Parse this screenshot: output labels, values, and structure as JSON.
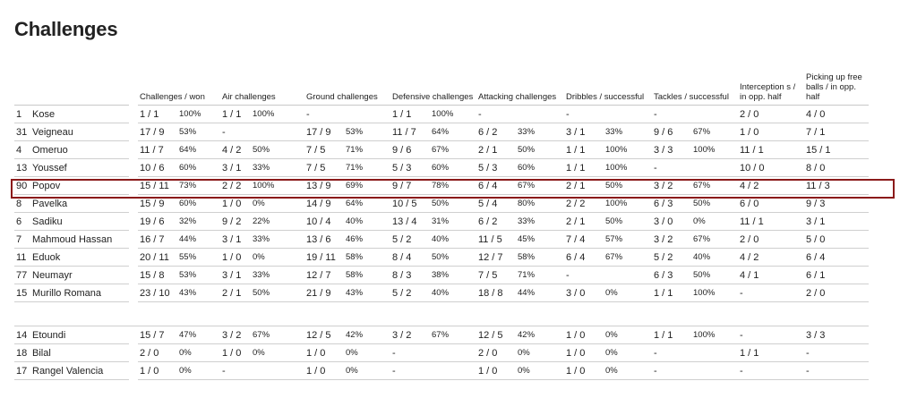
{
  "title": "Challenges",
  "headers": {
    "challenges": "Challenges / won",
    "air": "Air challenges",
    "ground": "Ground challenges",
    "defensive": "Defensive challenges",
    "attacking": "Attacking challenges",
    "dribbles": "Dribbles / successful",
    "tackles": "Tackles / successful",
    "interceptions": "Interception s / in opp. half",
    "freeballs": "Picking up free balls / in opp. half"
  },
  "rows": [
    {
      "no": "1",
      "name": "Kose",
      "c": "1 / 1",
      "cp": "100%",
      "a": "1 / 1",
      "ap": "100%",
      "g": "-",
      "gp": "",
      "d": "1 / 1",
      "dp": "100%",
      "at": "-",
      "atp": "",
      "dr": "-",
      "drp": "",
      "t": "-",
      "tp": "",
      "i": "2 / 0",
      "f": "4 / 0"
    },
    {
      "no": "31",
      "name": "Veigneau",
      "c": "17 / 9",
      "cp": "53%",
      "a": "-",
      "ap": "",
      "g": "17 / 9",
      "gp": "53%",
      "d": "11 / 7",
      "dp": "64%",
      "at": "6 / 2",
      "atp": "33%",
      "dr": "3 / 1",
      "drp": "33%",
      "t": "9 / 6",
      "tp": "67%",
      "i": "1 / 0",
      "f": "7 / 1"
    },
    {
      "no": "4",
      "name": "Omeruo",
      "c": "11 / 7",
      "cp": "64%",
      "a": "4 / 2",
      "ap": "50%",
      "g": "7 / 5",
      "gp": "71%",
      "d": "9 / 6",
      "dp": "67%",
      "at": "2 / 1",
      "atp": "50%",
      "dr": "1 / 1",
      "drp": "100%",
      "t": "3 / 3",
      "tp": "100%",
      "i": "11 / 1",
      "f": "15 / 1"
    },
    {
      "no": "13",
      "name": "Youssef",
      "c": "10 / 6",
      "cp": "60%",
      "a": "3 / 1",
      "ap": "33%",
      "g": "7 / 5",
      "gp": "71%",
      "d": "5 / 3",
      "dp": "60%",
      "at": "5 / 3",
      "atp": "60%",
      "dr": "1 / 1",
      "drp": "100%",
      "t": "-",
      "tp": "",
      "i": "10 / 0",
      "f": "8 / 0"
    },
    {
      "no": "90",
      "name": "Popov",
      "c": "15 / 11",
      "cp": "73%",
      "a": "2 / 2",
      "ap": "100%",
      "g": "13 / 9",
      "gp": "69%",
      "d": "9 / 7",
      "dp": "78%",
      "at": "6 / 4",
      "atp": "67%",
      "dr": "2 / 1",
      "drp": "50%",
      "t": "3 / 2",
      "tp": "67%",
      "i": "4 / 2",
      "f": "11 / 3"
    },
    {
      "no": "8",
      "name": "Pavelka",
      "c": "15 / 9",
      "cp": "60%",
      "a": "1 / 0",
      "ap": "0%",
      "g": "14 / 9",
      "gp": "64%",
      "d": "10 / 5",
      "dp": "50%",
      "at": "5 / 4",
      "atp": "80%",
      "dr": "2 / 2",
      "drp": "100%",
      "t": "6 / 3",
      "tp": "50%",
      "i": "6 / 0",
      "f": "9 / 3"
    },
    {
      "no": "6",
      "name": "Sadiku",
      "c": "19 / 6",
      "cp": "32%",
      "a": "9 / 2",
      "ap": "22%",
      "g": "10 / 4",
      "gp": "40%",
      "d": "13 / 4",
      "dp": "31%",
      "at": "6 / 2",
      "atp": "33%",
      "dr": "2 / 1",
      "drp": "50%",
      "t": "3 / 0",
      "tp": "0%",
      "i": "11 / 1",
      "f": "3 / 1"
    },
    {
      "no": "7",
      "name": "Mahmoud Hassan",
      "c": "16 / 7",
      "cp": "44%",
      "a": "3 / 1",
      "ap": "33%",
      "g": "13 / 6",
      "gp": "46%",
      "d": "5 / 2",
      "dp": "40%",
      "at": "11 / 5",
      "atp": "45%",
      "dr": "7 / 4",
      "drp": "57%",
      "t": "3 / 2",
      "tp": "67%",
      "i": "2 / 0",
      "f": "5 / 0"
    },
    {
      "no": "11",
      "name": "Eduok",
      "c": "20 / 11",
      "cp": "55%",
      "a": "1 / 0",
      "ap": "0%",
      "g": "19 / 11",
      "gp": "58%",
      "d": "8 / 4",
      "dp": "50%",
      "at": "12 / 7",
      "atp": "58%",
      "dr": "6 / 4",
      "drp": "67%",
      "t": "5 / 2",
      "tp": "40%",
      "i": "4 / 2",
      "f": "6 / 4"
    },
    {
      "no": "77",
      "name": "Neumayr",
      "c": "15 / 8",
      "cp": "53%",
      "a": "3 / 1",
      "ap": "33%",
      "g": "12 / 7",
      "gp": "58%",
      "d": "8 / 3",
      "dp": "38%",
      "at": "7 / 5",
      "atp": "71%",
      "dr": "-",
      "drp": "",
      "t": "6 / 3",
      "tp": "50%",
      "i": "4 / 1",
      "f": "6 / 1"
    },
    {
      "no": "15",
      "name": "Murillo Romana",
      "c": "23 / 10",
      "cp": "43%",
      "a": "2 / 1",
      "ap": "50%",
      "g": "21 / 9",
      "gp": "43%",
      "d": "5 / 2",
      "dp": "40%",
      "at": "18 / 8",
      "atp": "44%",
      "dr": "3 / 0",
      "drp": "0%",
      "t": "1 / 1",
      "tp": "100%",
      "i": "-",
      "f": "2 / 0"
    }
  ],
  "subs": [
    {
      "no": "14",
      "name": "Etoundi",
      "c": "15 / 7",
      "cp": "47%",
      "a": "3 / 2",
      "ap": "67%",
      "g": "12 / 5",
      "gp": "42%",
      "d": "3 / 2",
      "dp": "67%",
      "at": "12 / 5",
      "atp": "42%",
      "dr": "1 / 0",
      "drp": "0%",
      "t": "1 / 1",
      "tp": "100%",
      "i": "-",
      "f": "3 / 3"
    },
    {
      "no": "18",
      "name": "Bilal",
      "c": "2 / 0",
      "cp": "0%",
      "a": "1 / 0",
      "ap": "0%",
      "g": "1 / 0",
      "gp": "0%",
      "d": "-",
      "dp": "",
      "at": "2 / 0",
      "atp": "0%",
      "dr": "1 / 0",
      "drp": "0%",
      "t": "-",
      "tp": "",
      "i": "1 / 1",
      "f": "-"
    },
    {
      "no": "17",
      "name": "Rangel Valencia",
      "c": "1 / 0",
      "cp": "0%",
      "a": "-",
      "ap": "",
      "g": "1 / 0",
      "gp": "0%",
      "d": "-",
      "dp": "",
      "at": "1 / 0",
      "atp": "0%",
      "dr": "1 / 0",
      "drp": "0%",
      "t": "-",
      "tp": "",
      "i": "-",
      "f": "-"
    }
  ]
}
